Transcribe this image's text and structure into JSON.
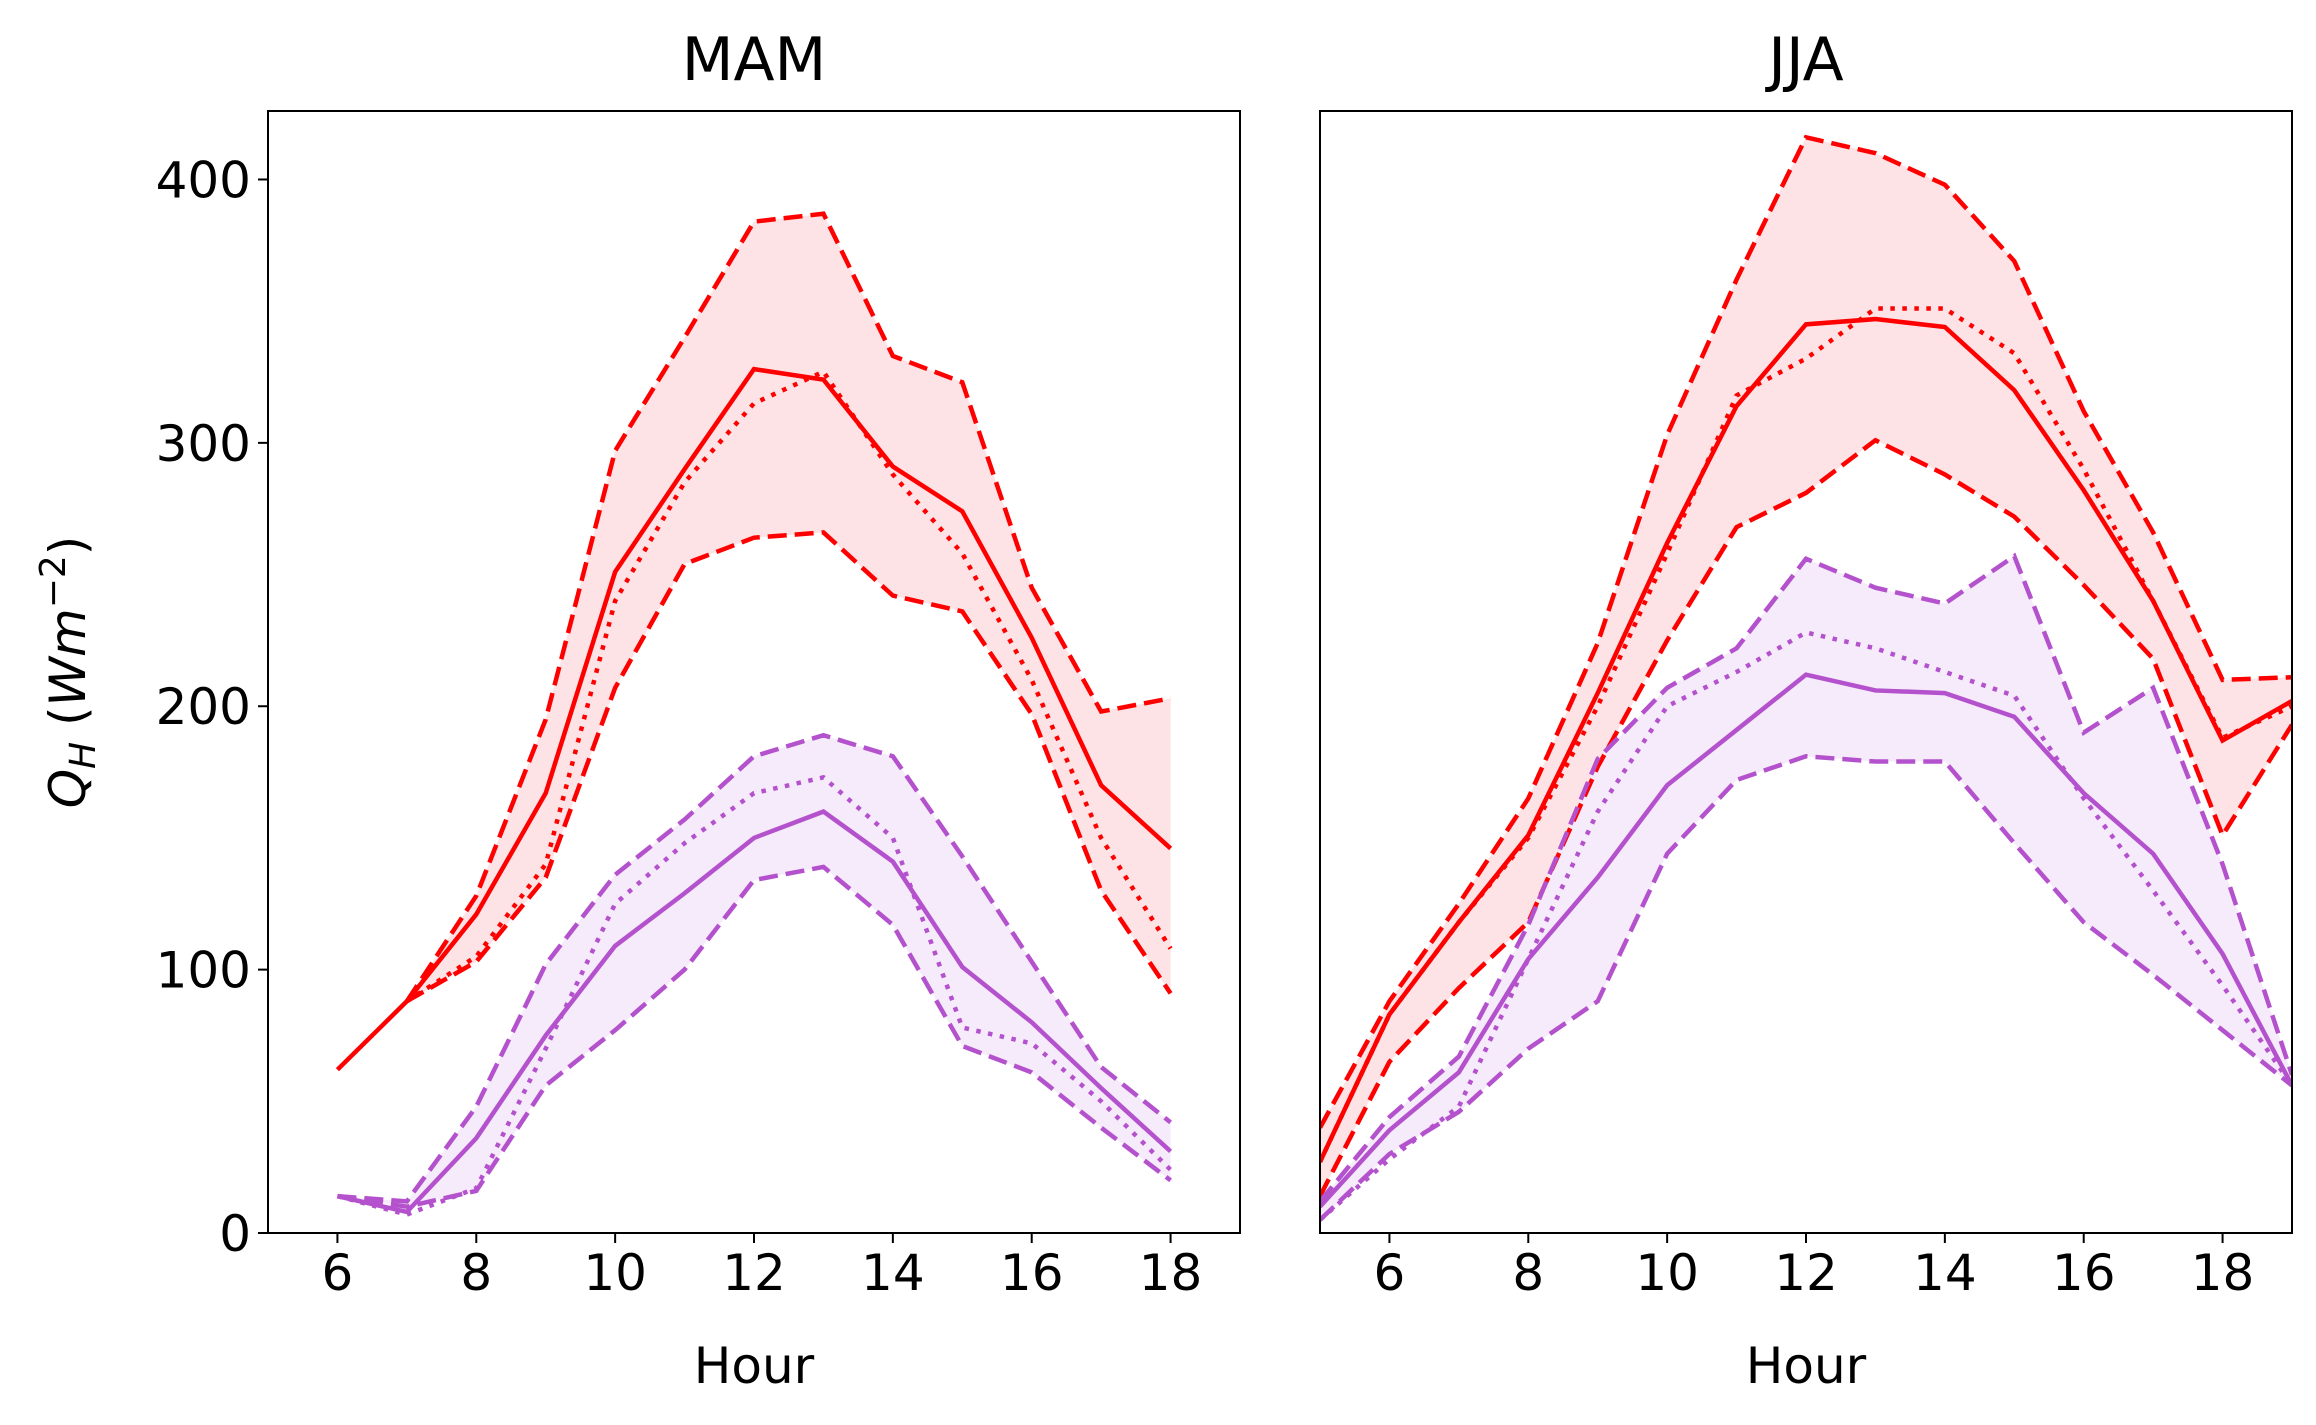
{
  "chart_data": [
    {
      "type": "line",
      "title": "MAM",
      "xlabel": "Hour",
      "ylabel": [
        "Q",
        "H",
        " (Wm",
        "−2",
        ")"
      ],
      "x": [
        6,
        7,
        8,
        9,
        10,
        11,
        12,
        13,
        14,
        15,
        16,
        17,
        18
      ],
      "xlim": [
        5,
        19
      ],
      "xticks": [
        6,
        8,
        10,
        12,
        14,
        16,
        18
      ],
      "ylim": [
        0,
        426
      ],
      "yticks": [
        0,
        100,
        200,
        300,
        400
      ],
      "series": [
        {
          "color": "#ff0000",
          "style": "dashed",
          "fill_to_next": "#fde0e2",
          "values": [
            null,
            88,
            128,
            195,
            297,
            340,
            384,
            387,
            333,
            323,
            245,
            198,
            203
          ]
        },
        {
          "color": "#ff0000",
          "style": "dashed",
          "values": [
            null,
            88,
            103,
            135,
            207,
            254,
            264,
            266,
            242,
            236,
            197,
            130,
            91
          ]
        },
        {
          "color": "#ff0000",
          "style": "dotted",
          "values": [
            null,
            88,
            105,
            140,
            240,
            285,
            315,
            327,
            288,
            258,
            210,
            150,
            108
          ]
        },
        {
          "color": "#ff0000",
          "style": "solid",
          "values": [
            62,
            88,
            121,
            167,
            251,
            290,
            328,
            324,
            291,
            274,
            226,
            170,
            146
          ]
        },
        {
          "color": "#b452cd",
          "style": "dashed",
          "fill_to_next": "#f5e9fa",
          "values": [
            14,
            12,
            48,
            102,
            136,
            157,
            181,
            189,
            181,
            143,
            103,
            63,
            42
          ]
        },
        {
          "color": "#b452cd",
          "style": "dashed",
          "values": [
            14,
            10,
            16,
            56,
            77,
            100,
            134,
            139,
            117,
            71,
            61,
            40,
            20
          ]
        },
        {
          "color": "#b452cd",
          "style": "dotted",
          "values": [
            14,
            7,
            17,
            70,
            125,
            148,
            167,
            173,
            150,
            78,
            72,
            50,
            24
          ]
        },
        {
          "color": "#b452cd",
          "style": "solid",
          "values": [
            14,
            8,
            36,
            75,
            109,
            129,
            150,
            160,
            141,
            101,
            80,
            55,
            31
          ]
        }
      ]
    },
    {
      "type": "line",
      "title": "JJA",
      "xlabel": "Hour",
      "x": [
        5,
        6,
        7,
        8,
        9,
        10,
        11,
        12,
        13,
        14,
        15,
        16,
        17,
        18,
        19
      ],
      "xlim": [
        5,
        19
      ],
      "xticks": [
        6,
        8,
        10,
        12,
        14,
        16,
        18
      ],
      "ylim": [
        0,
        426
      ],
      "series": [
        {
          "color": "#ff0000",
          "style": "dashed",
          "fill_to_next": "#fde0e2",
          "values": [
            40,
            88,
            125,
            165,
            224,
            303,
            362,
            416,
            410,
            398,
            369,
            312,
            266,
            210,
            211
          ]
        },
        {
          "color": "#ff0000",
          "style": "dashed",
          "values": [
            14,
            65,
            93,
            118,
            177,
            225,
            268,
            281,
            301,
            288,
            272,
            246,
            218,
            151,
            193
          ]
        },
        {
          "color": "#ff0000",
          "style": "dotted",
          "values": [
            27,
            83,
            118,
            150,
            200,
            258,
            318,
            332,
            351,
            351,
            334,
            290,
            240,
            188,
            200
          ]
        },
        {
          "color": "#ff0000",
          "style": "solid",
          "values": [
            27,
            83,
            118,
            151,
            205,
            262,
            314,
            345,
            347,
            344,
            320,
            282,
            240,
            187,
            202
          ]
        },
        {
          "color": "#b452cd",
          "style": "dashed",
          "fill_to_next": "#f5e9fa",
          "values": [
            12,
            44,
            67,
            117,
            180,
            207,
            222,
            256,
            245,
            239,
            257,
            190,
            207,
            140,
            60
          ]
        },
        {
          "color": "#b452cd",
          "style": "dashed",
          "values": [
            5,
            30,
            46,
            70,
            88,
            144,
            172,
            181,
            179,
            179,
            148,
            118,
            98,
            77,
            56
          ]
        },
        {
          "color": "#b452cd",
          "style": "dotted",
          "values": [
            5,
            28,
            48,
            104,
            160,
            200,
            213,
            228,
            222,
            213,
            204,
            165,
            130,
            94,
            56
          ]
        },
        {
          "color": "#b452cd",
          "style": "solid",
          "values": [
            10,
            39,
            61,
            104,
            135,
            170,
            191,
            212,
            206,
            205,
            196,
            167,
            144,
            106,
            56
          ]
        }
      ]
    }
  ]
}
